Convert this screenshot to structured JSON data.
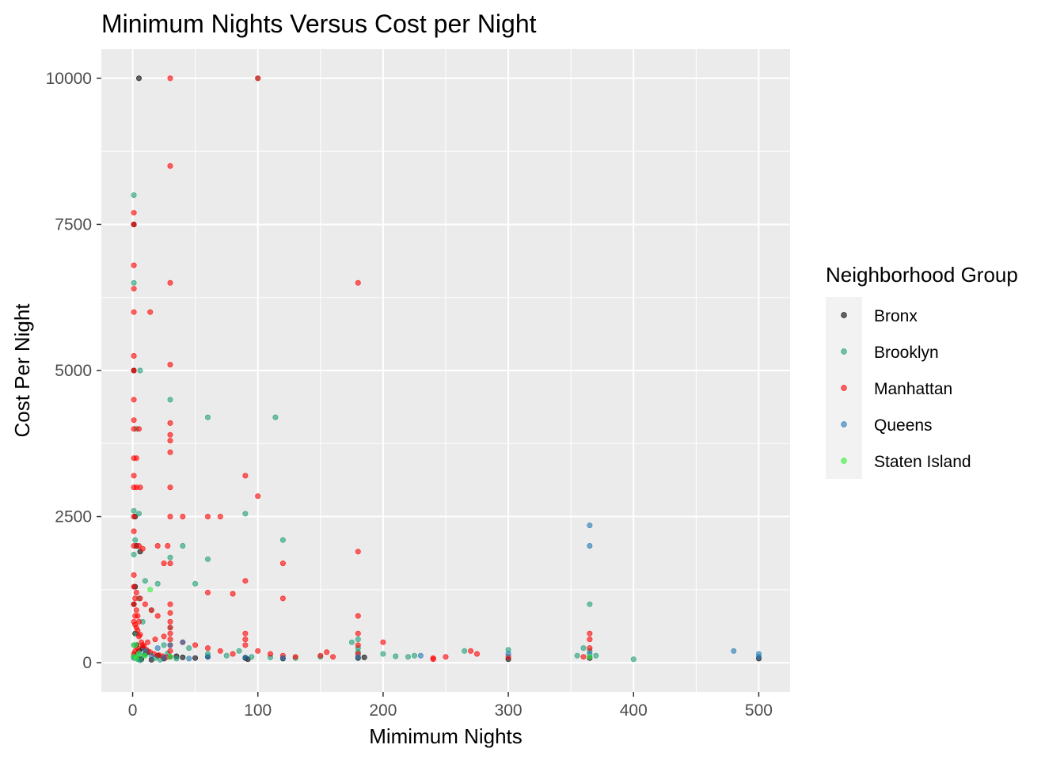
{
  "chart_data": {
    "type": "scatter",
    "title": "Minimum Nights Versus Cost per Night",
    "xlabel": "Mimimum Nights",
    "ylabel": "Cost Per Night",
    "xlim": [
      -25,
      525
    ],
    "ylim": [
      -500,
      10500
    ],
    "x_ticks": [
      0,
      100,
      200,
      300,
      400,
      500
    ],
    "x_minor_ticks": [
      50,
      150,
      250,
      350,
      450
    ],
    "y_ticks": [
      0,
      2500,
      5000,
      7500,
      10000
    ],
    "y_minor_ticks": [
      1250,
      3750,
      6250,
      8750
    ],
    "x_tick_labels": [
      "0",
      "100",
      "200",
      "300",
      "400",
      "500"
    ],
    "y_tick_labels": [
      "0",
      "2500",
      "5000",
      "7500",
      "10000"
    ],
    "grid": true,
    "panel_background": "#ebebeb",
    "point_opacity": 0.6,
    "legend": {
      "title": "Neighborhood Group",
      "placement": "right"
    },
    "series": [
      {
        "name": "Bronx",
        "color": "#000000",
        "points": [
          [
            5,
            10000
          ],
          [
            1,
            7500
          ],
          [
            1,
            5000
          ],
          [
            2,
            2500
          ],
          [
            3,
            2000
          ],
          [
            1,
            1000
          ],
          [
            2,
            500
          ],
          [
            3,
            300
          ],
          [
            5,
            200
          ],
          [
            10,
            150
          ],
          [
            20,
            120
          ],
          [
            30,
            100
          ],
          [
            40,
            90
          ],
          [
            50,
            80
          ],
          [
            60,
            100
          ],
          [
            90,
            80
          ],
          [
            92,
            60
          ],
          [
            120,
            70
          ],
          [
            180,
            80
          ],
          [
            185,
            90
          ],
          [
            300,
            60
          ],
          [
            365,
            80
          ],
          [
            500,
            70
          ],
          [
            1,
            100
          ],
          [
            4,
            80
          ],
          [
            7,
            60
          ],
          [
            15,
            50
          ],
          [
            25,
            70
          ],
          [
            35,
            110
          ],
          [
            2,
            1300
          ],
          [
            6,
            1900
          ],
          [
            8,
            250
          ],
          [
            12,
            180
          ]
        ]
      },
      {
        "name": "Brooklyn",
        "color": "#1a9e77",
        "points": [
          [
            100,
            10000
          ],
          [
            1,
            8000
          ],
          [
            1,
            6500
          ],
          [
            6,
            5000
          ],
          [
            3,
            4000
          ],
          [
            30,
            4500
          ],
          [
            60,
            4200
          ],
          [
            114,
            4200
          ],
          [
            90,
            2550
          ],
          [
            1,
            2600
          ],
          [
            5,
            2550
          ],
          [
            40,
            2000
          ],
          [
            30,
            1800
          ],
          [
            60,
            1770
          ],
          [
            120,
            2100
          ],
          [
            50,
            1350
          ],
          [
            20,
            1350
          ],
          [
            10,
            1400
          ],
          [
            1,
            1850
          ],
          [
            2,
            2100
          ],
          [
            5,
            1100
          ],
          [
            15,
            900
          ],
          [
            8,
            700
          ],
          [
            3,
            500
          ],
          [
            30,
            600
          ],
          [
            25,
            300
          ],
          [
            45,
            250
          ],
          [
            60,
            150
          ],
          [
            75,
            120
          ],
          [
            85,
            200
          ],
          [
            95,
            100
          ],
          [
            110,
            90
          ],
          [
            130,
            80
          ],
          [
            150,
            100
          ],
          [
            175,
            350
          ],
          [
            180,
            400
          ],
          [
            200,
            150
          ],
          [
            210,
            110
          ],
          [
            220,
            100
          ],
          [
            225,
            120
          ],
          [
            265,
            200
          ],
          [
            300,
            220
          ],
          [
            355,
            120
          ],
          [
            360,
            250
          ],
          [
            365,
            1000
          ],
          [
            370,
            120
          ],
          [
            400,
            60
          ],
          [
            1,
            300
          ],
          [
            2,
            150
          ],
          [
            4,
            60
          ],
          [
            6,
            40
          ],
          [
            9,
            120
          ],
          [
            12,
            200
          ],
          [
            18,
            80
          ],
          [
            22,
            50
          ],
          [
            28,
            160
          ],
          [
            35,
            70
          ],
          [
            180,
            250
          ],
          [
            180,
            180
          ],
          [
            365,
            200
          ]
        ]
      },
      {
        "name": "Manhattan",
        "color": "#ff0000",
        "points": [
          [
            30,
            10000
          ],
          [
            100,
            10000
          ],
          [
            30,
            8500
          ],
          [
            1,
            7700
          ],
          [
            1,
            7500
          ],
          [
            1,
            6800
          ],
          [
            1,
            6400
          ],
          [
            1,
            6000
          ],
          [
            14,
            6000
          ],
          [
            30,
            6500
          ],
          [
            180,
            6500
          ],
          [
            1,
            5250
          ],
          [
            1,
            5000
          ],
          [
            30,
            5100
          ],
          [
            1,
            4500
          ],
          [
            1,
            4150
          ],
          [
            1,
            4000
          ],
          [
            5,
            4000
          ],
          [
            30,
            4100
          ],
          [
            30,
            3900
          ],
          [
            30,
            3800
          ],
          [
            30,
            3600
          ],
          [
            1,
            3500
          ],
          [
            3,
            3500
          ],
          [
            1,
            3200
          ],
          [
            1,
            3000
          ],
          [
            3,
            3000
          ],
          [
            6,
            3000
          ],
          [
            30,
            3000
          ],
          [
            90,
            3200
          ],
          [
            100,
            2850
          ],
          [
            1,
            2500
          ],
          [
            30,
            2500
          ],
          [
            40,
            2500
          ],
          [
            60,
            2500
          ],
          [
            70,
            2500
          ],
          [
            1,
            2250
          ],
          [
            1,
            2000
          ],
          [
            5,
            2000
          ],
          [
            8,
            1950
          ],
          [
            20,
            2000
          ],
          [
            28,
            2000
          ],
          [
            30,
            1700
          ],
          [
            25,
            1700
          ],
          [
            180,
            1900
          ],
          [
            120,
            1700
          ],
          [
            90,
            1400
          ],
          [
            60,
            1200
          ],
          [
            80,
            1180
          ],
          [
            120,
            1100
          ],
          [
            1,
            1500
          ],
          [
            3,
            1200
          ],
          [
            6,
            1100
          ],
          [
            10,
            1000
          ],
          [
            15,
            900
          ],
          [
            20,
            800
          ],
          [
            30,
            700
          ],
          [
            30,
            600
          ],
          [
            30,
            500
          ],
          [
            25,
            450
          ],
          [
            18,
            400
          ],
          [
            12,
            350
          ],
          [
            8,
            300
          ],
          [
            4,
            250
          ],
          [
            2,
            200
          ],
          [
            1,
            150
          ],
          [
            40,
            350
          ],
          [
            50,
            300
          ],
          [
            60,
            250
          ],
          [
            70,
            200
          ],
          [
            80,
            150
          ],
          [
            90,
            500
          ],
          [
            90,
            400
          ],
          [
            90,
            300
          ],
          [
            100,
            200
          ],
          [
            110,
            150
          ],
          [
            120,
            120
          ],
          [
            130,
            100
          ],
          [
            150,
            120
          ],
          [
            155,
            180
          ],
          [
            160,
            100
          ],
          [
            180,
            800
          ],
          [
            180,
            500
          ],
          [
            180,
            300
          ],
          [
            180,
            150
          ],
          [
            200,
            350
          ],
          [
            240,
            60
          ],
          [
            240,
            80
          ],
          [
            250,
            100
          ],
          [
            270,
            200
          ],
          [
            275,
            150
          ],
          [
            300,
            100
          ],
          [
            360,
            100
          ],
          [
            365,
            500
          ],
          [
            365,
            400
          ],
          [
            365,
            250
          ],
          [
            1,
            1000
          ],
          [
            2,
            800
          ],
          [
            3,
            600
          ],
          [
            5,
            450
          ],
          [
            7,
            350
          ],
          [
            9,
            280
          ],
          [
            11,
            220
          ],
          [
            14,
            180
          ],
          [
            17,
            150
          ],
          [
            21,
            130
          ],
          [
            24,
            110
          ],
          [
            27,
            95
          ],
          [
            1,
            700
          ],
          [
            2,
            650
          ],
          [
            4,
            550
          ],
          [
            6,
            480
          ],
          [
            1,
            1300
          ],
          [
            2,
            1100
          ],
          [
            3,
            900
          ],
          [
            4,
            800
          ],
          [
            5,
            700
          ],
          [
            30,
            1000
          ],
          [
            30,
            850
          ],
          [
            30,
            400
          ],
          [
            30,
            300
          ],
          [
            30,
            200
          ]
        ]
      },
      {
        "name": "Queens",
        "color": "#1f78b4",
        "points": [
          [
            365,
            2350
          ],
          [
            365,
            2000
          ],
          [
            480,
            200
          ],
          [
            500,
            150
          ],
          [
            500,
            100
          ],
          [
            230,
            120
          ],
          [
            40,
            350
          ],
          [
            30,
            300
          ],
          [
            20,
            250
          ],
          [
            10,
            200
          ],
          [
            5,
            150
          ],
          [
            2,
            100
          ],
          [
            1,
            80
          ],
          [
            60,
            100
          ],
          [
            90,
            90
          ],
          [
            120,
            80
          ],
          [
            180,
            100
          ],
          [
            300,
            150
          ],
          [
            365,
            150
          ],
          [
            15,
            120
          ],
          [
            25,
            90
          ],
          [
            45,
            70
          ]
        ]
      },
      {
        "name": "Staten Island",
        "color": "#33ee33",
        "points": [
          [
            14,
            1250
          ],
          [
            2,
            300
          ],
          [
            5,
            150
          ],
          [
            30,
            100
          ],
          [
            365,
            100
          ],
          [
            1,
            100
          ],
          [
            3,
            80
          ],
          [
            10,
            120
          ]
        ]
      }
    ]
  }
}
